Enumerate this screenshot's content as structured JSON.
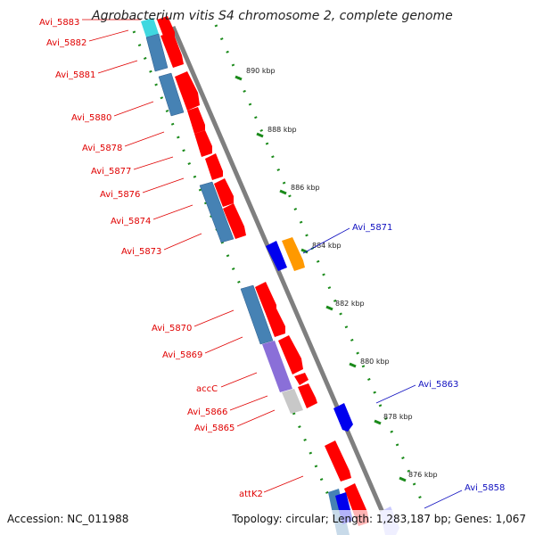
{
  "title": "Agrobacterium vitis S4 chromosome 2, complete genome",
  "footer": {
    "accession": "Accession: NC_011988",
    "summary": "Topology: circular; Length: 1,283,187 bp; Genes: 1,067"
  },
  "colors": {
    "backbone": "#7f7f7f",
    "forward_cds": "#ff0000",
    "reverse_cds": "#4682b4",
    "left_label": "#e00000",
    "right_label": "#1010c0",
    "dotted_track": "#1a8a1a",
    "orange_gene": "#ff9900",
    "blue_gene": "#0000ee",
    "cyan_gene": "#40d8e0",
    "purple_gene": "#8a6fd8",
    "gray_gene": "#c8c8c8"
  },
  "ticks": [
    {
      "label": "890 kbp"
    },
    {
      "label": "888 kbp"
    },
    {
      "label": "886 kbp"
    },
    {
      "label": "884 kbp"
    },
    {
      "label": "882 kbp"
    },
    {
      "label": "880 kbp"
    },
    {
      "label": "878 kbp"
    },
    {
      "label": "876 kbp"
    }
  ],
  "left_labels": [
    {
      "name": "Avi_5883"
    },
    {
      "name": "Avi_5882"
    },
    {
      "name": "Avi_5881"
    },
    {
      "name": "Avi_5880"
    },
    {
      "name": "Avi_5878"
    },
    {
      "name": "Avi_5877"
    },
    {
      "name": "Avi_5876"
    },
    {
      "name": "Avi_5874"
    },
    {
      "name": "Avi_5873"
    },
    {
      "name": "Avi_5870"
    },
    {
      "name": "Avi_5869"
    },
    {
      "name": "accC"
    },
    {
      "name": "Avi_5866"
    },
    {
      "name": "Avi_5865"
    },
    {
      "name": "attK2"
    }
  ],
  "right_labels": [
    {
      "name": "Avi_5871"
    },
    {
      "name": "Avi_5863"
    },
    {
      "name": "Avi_5858"
    }
  ]
}
